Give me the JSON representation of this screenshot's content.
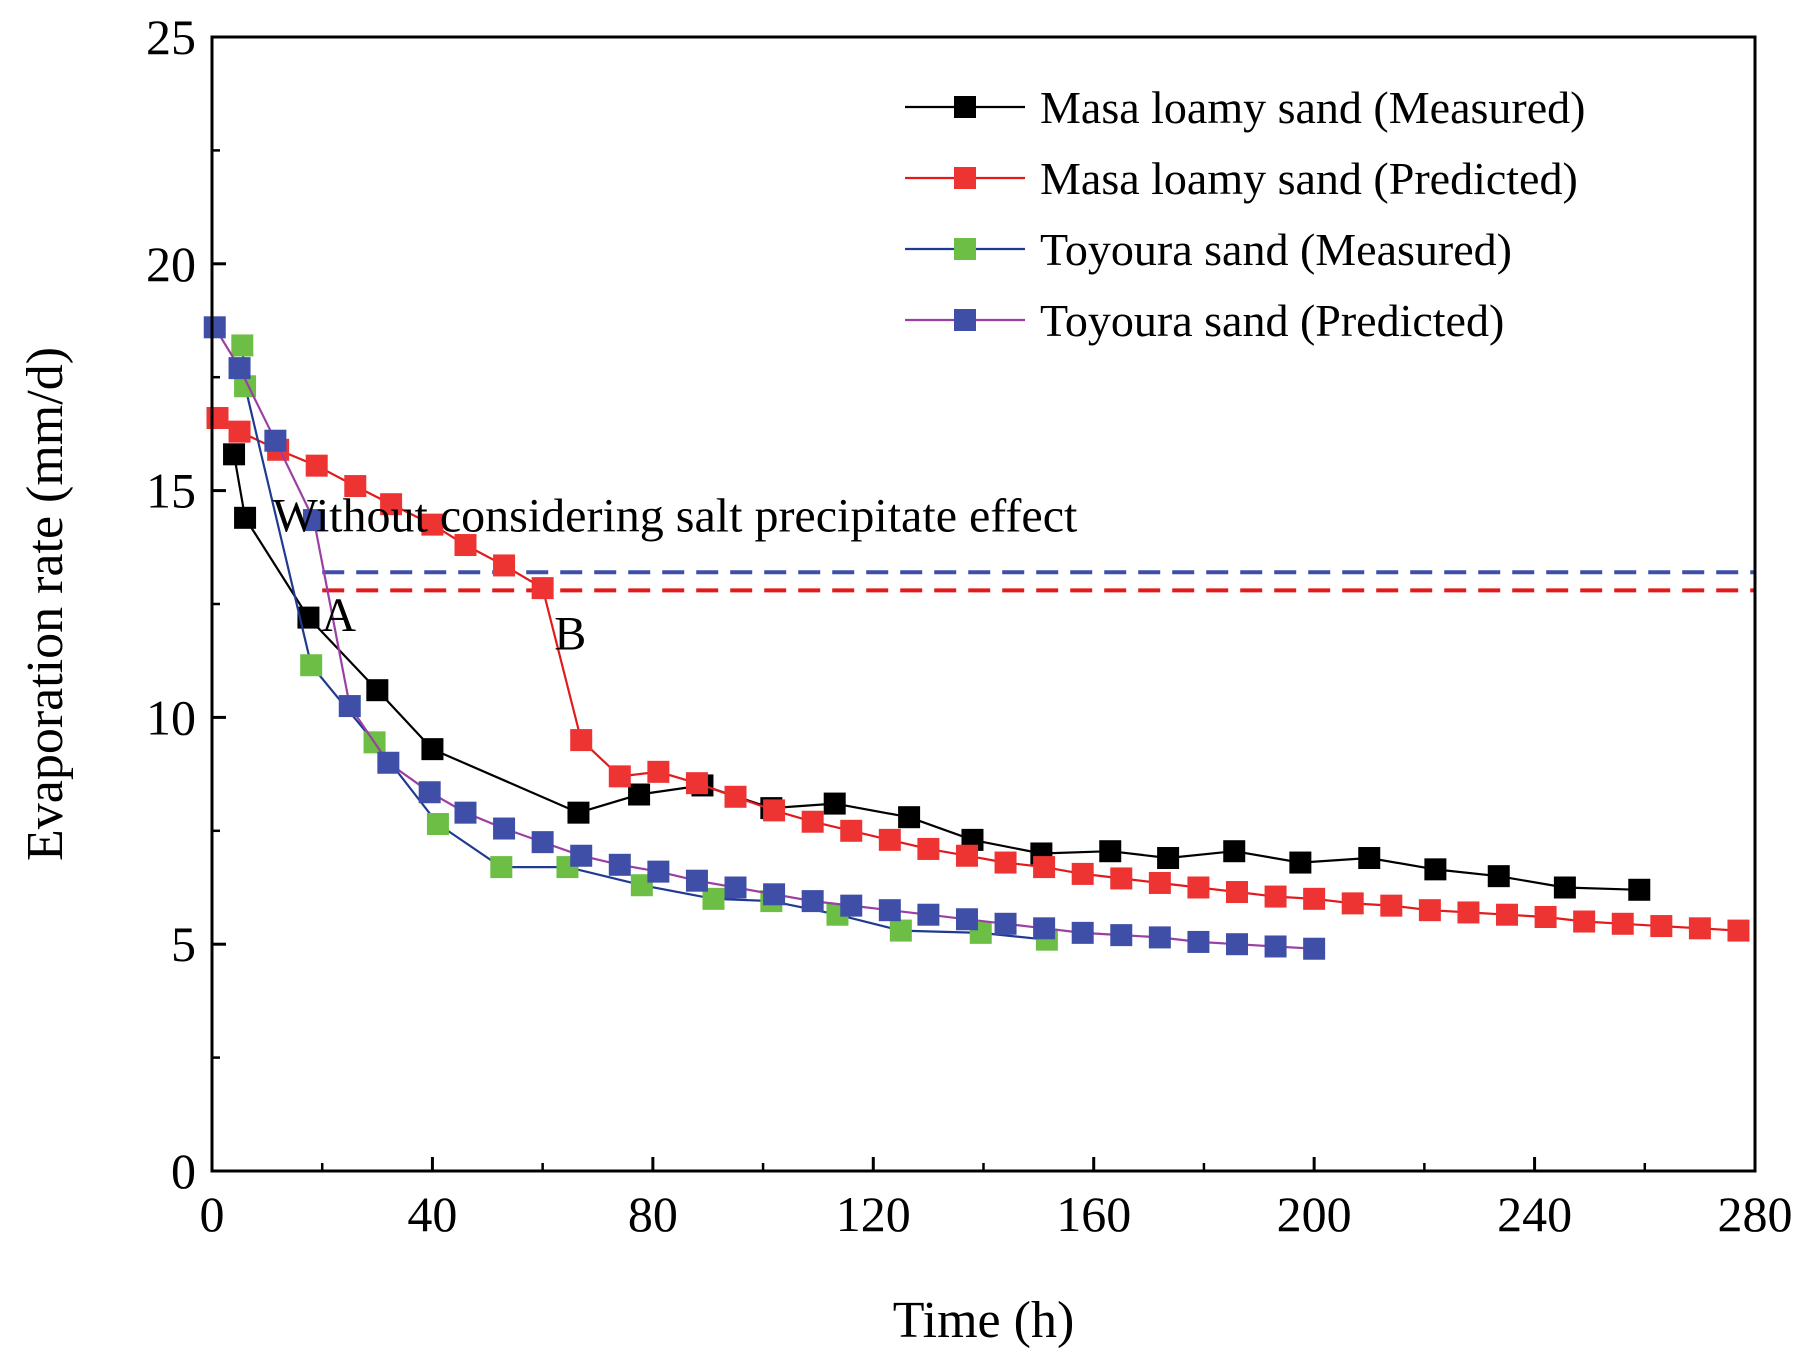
{
  "chart_data": {
    "type": "line",
    "xlabel": "Time (h)",
    "ylabel": "Evaporation rate (mm/d)",
    "xlim": [
      0,
      280
    ],
    "ylim": [
      0,
      25
    ],
    "xticks": [
      0,
      40,
      80,
      120,
      160,
      200,
      240,
      280
    ],
    "yticks": [
      0,
      5,
      10,
      15,
      20,
      25
    ],
    "grid": false,
    "legend_position": "top-right",
    "series": [
      {
        "name": "Masa loamy sand (Measured)",
        "line_color": "#000000",
        "marker_color": "#000000",
        "x": [
          4,
          6,
          17.5,
          30,
          40,
          66.5,
          77.5,
          89,
          101.5,
          113,
          126.5,
          138,
          150.5,
          163,
          173.5,
          185.5,
          197.5,
          210,
          222,
          233.5,
          245.5,
          259
        ],
        "y": [
          15.8,
          14.4,
          12.2,
          10.6,
          9.3,
          7.9,
          8.3,
          8.5,
          8.0,
          8.1,
          7.8,
          7.3,
          7.0,
          7.05,
          6.9,
          7.05,
          6.8,
          6.9,
          6.65,
          6.5,
          6.25,
          6.2
        ]
      },
      {
        "name": "Masa loamy sand (Predicted)",
        "line_color": "#e31a1c",
        "marker_color": "#ee3333",
        "x": [
          1,
          5,
          12,
          19,
          26,
          32.5,
          40,
          46,
          53,
          60,
          67,
          74,
          81,
          88,
          95,
          102,
          109,
          116,
          123,
          130,
          137,
          144,
          151,
          158,
          165,
          172,
          179,
          186,
          193,
          200,
          207,
          214,
          221,
          228,
          235,
          242,
          249,
          256,
          263,
          270,
          277
        ],
        "y": [
          16.6,
          16.3,
          15.9,
          15.55,
          15.1,
          14.7,
          14.25,
          13.8,
          13.35,
          12.85,
          9.5,
          8.7,
          8.8,
          8.55,
          8.25,
          7.95,
          7.7,
          7.5,
          7.3,
          7.1,
          6.95,
          6.8,
          6.7,
          6.55,
          6.45,
          6.35,
          6.25,
          6.15,
          6.05,
          6.0,
          5.9,
          5.85,
          5.75,
          5.7,
          5.65,
          5.6,
          5.5,
          5.45,
          5.4,
          5.35,
          5.3
        ]
      },
      {
        "name": "Toyoura sand (Measured)",
        "line_color": "#1f3a93",
        "marker_color": "#6cbf44",
        "x": [
          5.5,
          6,
          18,
          29.5,
          41,
          52.5,
          64.5,
          78,
          91,
          101.5,
          113.5,
          125,
          139.5,
          151.5
        ],
        "y": [
          18.2,
          17.3,
          11.15,
          9.45,
          7.65,
          6.7,
          6.7,
          6.3,
          6.0,
          5.95,
          5.65,
          5.3,
          5.25,
          5.1
        ]
      },
      {
        "name": "Toyoura sand (Predicted)",
        "line_color": "#9b3fa3",
        "marker_color": "#3f4fa8",
        "x": [
          0.5,
          5,
          11.5,
          18.5,
          25,
          32,
          39.5,
          46,
          53,
          60,
          67,
          74,
          81,
          88,
          95,
          102,
          109,
          116,
          123,
          130,
          137,
          144,
          151,
          158,
          165,
          172,
          179,
          186,
          193,
          200
        ],
        "y": [
          18.6,
          17.7,
          16.1,
          14.35,
          10.25,
          9.0,
          8.35,
          7.9,
          7.55,
          7.25,
          6.95,
          6.75,
          6.6,
          6.4,
          6.25,
          6.1,
          5.95,
          5.85,
          5.75,
          5.65,
          5.55,
          5.45,
          5.35,
          5.25,
          5.2,
          5.15,
          5.05,
          5.0,
          4.95,
          4.9
        ]
      }
    ],
    "reference_lines": [
      {
        "color": "#3f4fa8",
        "style": "dashed",
        "x_start": 20,
        "x_end": 280,
        "y": 13.2
      },
      {
        "color": "#e31a1c",
        "style": "dashed",
        "x_start": 20,
        "x_end": 280,
        "y": 12.8
      }
    ],
    "annotations": [
      {
        "text": "Without considering salt precipitate effect",
        "x": 84,
        "y": 14.1
      },
      {
        "text": "A",
        "x": 23,
        "y": 11.9
      },
      {
        "text": "B",
        "x": 65,
        "y": 11.5
      }
    ]
  }
}
